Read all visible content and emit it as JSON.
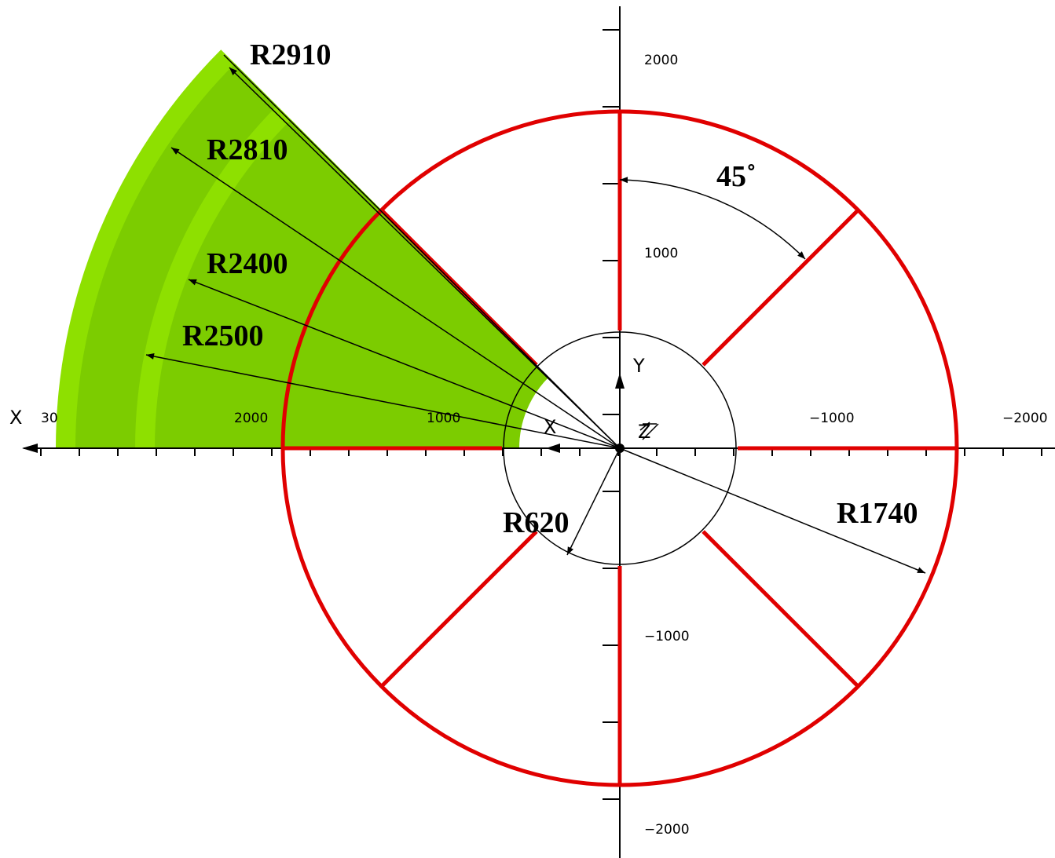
{
  "labels": {
    "r2910": "R2910",
    "r2810": "R2810",
    "r2400": "R2400",
    "r2500": "R2500",
    "r620": "R620",
    "r1740": "R1740",
    "angle": "45˚"
  },
  "axes": {
    "x_name": "X",
    "y_name": "Y",
    "z_name": "Z",
    "x_ticks": [
      "30",
      "2000",
      "1000",
      "−1000",
      "−2000"
    ],
    "y_ticks": [
      "2000",
      "1000",
      "−1000",
      "−2000"
    ]
  }
}
